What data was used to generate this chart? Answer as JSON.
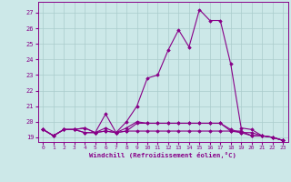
{
  "xlabel": "Windchill (Refroidissement éolien,°C)",
  "ylabel": "",
  "background_color": "#cce8e8",
  "grid_color": "#aacccc",
  "line_color": "#880088",
  "marker_color": "#880088",
  "xlim": [
    -0.5,
    23.5
  ],
  "ylim": [
    18.7,
    27.7
  ],
  "xticks": [
    0,
    1,
    2,
    3,
    4,
    5,
    6,
    7,
    8,
    9,
    10,
    11,
    12,
    13,
    14,
    15,
    16,
    17,
    18,
    19,
    20,
    21,
    22,
    23
  ],
  "yticks": [
    19,
    20,
    21,
    22,
    23,
    24,
    25,
    26,
    27
  ],
  "series": [
    {
      "x": [
        0,
        1,
        2,
        3,
        4,
        5,
        6,
        7,
        8,
        9,
        10,
        11,
        12,
        13,
        14,
        15,
        16,
        17,
        18,
        19,
        20,
        21,
        22,
        23
      ],
      "y": [
        19.5,
        19.1,
        19.5,
        19.5,
        19.6,
        19.3,
        20.5,
        19.3,
        20.0,
        21.0,
        22.8,
        23.0,
        24.6,
        25.9,
        24.8,
        27.2,
        26.5,
        26.5,
        23.7,
        19.6,
        19.5,
        19.1,
        19.0,
        18.8
      ]
    },
    {
      "x": [
        0,
        1,
        2,
        3,
        4,
        5,
        6,
        7,
        8,
        9,
        10,
        11,
        12,
        13,
        14,
        15,
        16,
        17,
        18,
        19,
        20,
        21,
        22,
        23
      ],
      "y": [
        19.5,
        19.1,
        19.5,
        19.5,
        19.3,
        19.3,
        19.4,
        19.3,
        19.4,
        19.4,
        19.4,
        19.4,
        19.4,
        19.4,
        19.4,
        19.4,
        19.4,
        19.4,
        19.4,
        19.4,
        19.1,
        19.1,
        19.0,
        18.8
      ]
    },
    {
      "x": [
        0,
        1,
        2,
        3,
        4,
        5,
        6,
        7,
        8,
        9,
        10,
        11,
        12,
        13,
        14,
        15,
        16,
        17,
        18,
        19,
        20,
        21,
        22,
        23
      ],
      "y": [
        19.5,
        19.1,
        19.5,
        19.5,
        19.3,
        19.3,
        19.4,
        19.3,
        19.4,
        19.9,
        19.9,
        19.9,
        19.9,
        19.9,
        19.9,
        19.9,
        19.9,
        19.9,
        19.4,
        19.3,
        19.1,
        19.1,
        19.0,
        18.8
      ]
    },
    {
      "x": [
        0,
        1,
        2,
        3,
        4,
        5,
        6,
        7,
        8,
        9,
        10,
        11,
        12,
        13,
        14,
        15,
        16,
        17,
        18,
        19,
        20,
        21,
        22,
        23
      ],
      "y": [
        19.5,
        19.1,
        19.5,
        19.5,
        19.6,
        19.3,
        19.6,
        19.3,
        19.6,
        20.0,
        19.9,
        19.9,
        19.9,
        19.9,
        19.9,
        19.9,
        19.9,
        19.9,
        19.5,
        19.3,
        19.3,
        19.1,
        19.0,
        18.8
      ]
    }
  ]
}
